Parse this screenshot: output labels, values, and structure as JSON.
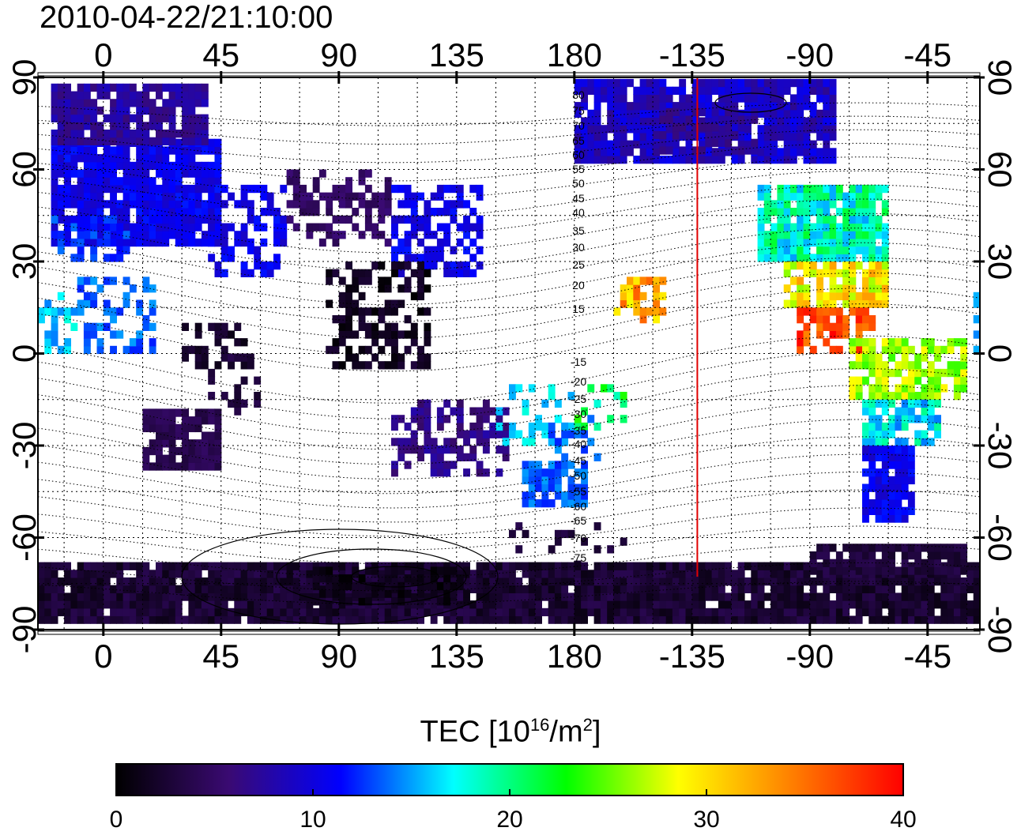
{
  "title": "2010-04-22/21:10:00",
  "map": {
    "lon_ticks": [
      0,
      45,
      90,
      135,
      180,
      -135,
      -90,
      -45
    ],
    "lat_ticks": [
      90,
      60,
      30,
      0,
      -30,
      -60,
      -90
    ],
    "contour_labels": [
      "80",
      "75",
      "70",
      "65",
      "60",
      "55",
      "50",
      "45",
      "40",
      "35",
      "30",
      "25",
      "20",
      "15",
      "-15",
      "-20",
      "-25",
      "-30",
      "-35",
      "-40",
      "-45",
      "-50",
      "-55",
      "-60",
      "-65",
      "-70",
      "-75"
    ],
    "terminator_lon": -133,
    "terminator_color": "#e00000"
  },
  "colorbar": {
    "title_prefix": "TEC  [10",
    "title_exp1": "16",
    "title_mid": "/m",
    "title_exp2": "2",
    "title_suffix": "]",
    "ticks": [
      "0",
      "10",
      "20",
      "30",
      "40"
    ],
    "range": [
      0,
      40
    ],
    "colors": [
      "#000000",
      "#3a0a72",
      "#0000ff",
      "#00ffff",
      "#00ff00",
      "#ffff00",
      "#ff8000",
      "#ff0000"
    ]
  }
}
